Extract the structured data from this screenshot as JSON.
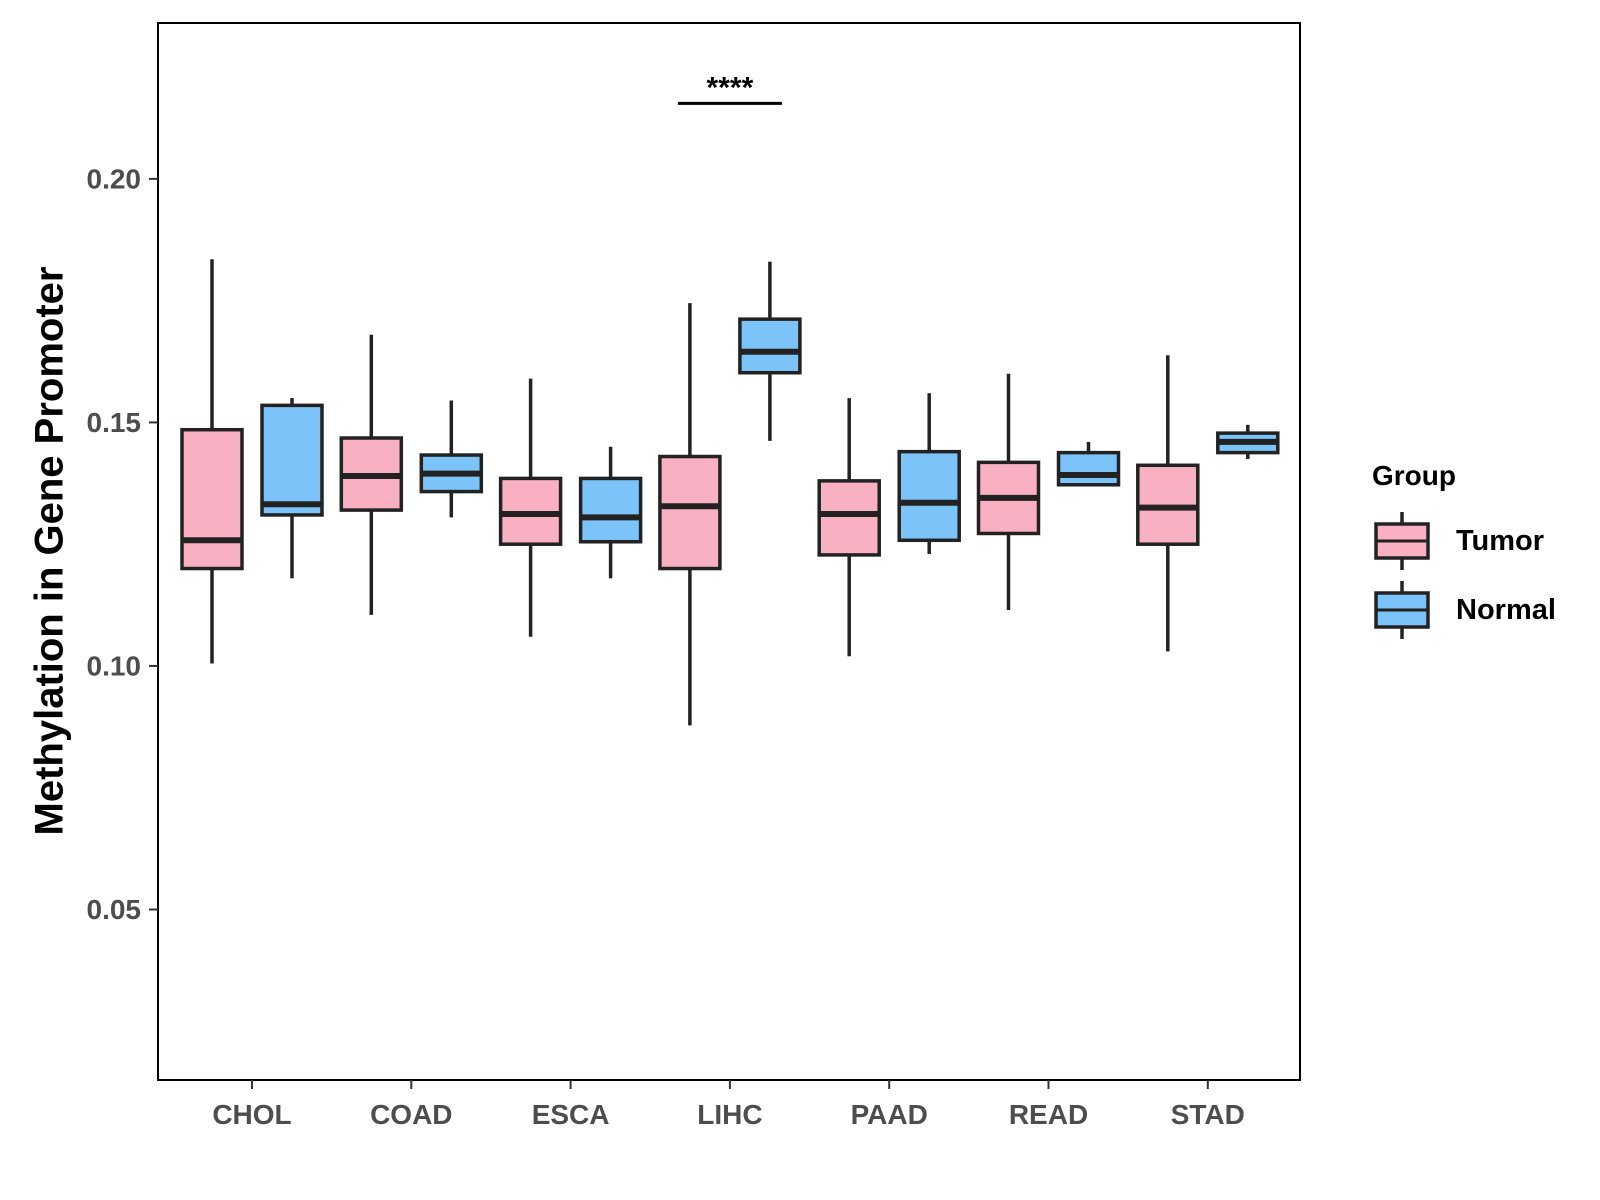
{
  "chart_data": {
    "type": "boxplot",
    "title": "",
    "xlabel": "",
    "ylabel": "Methylation in Gene Promoter",
    "ylim": [
      0.015,
      0.232
    ],
    "yticks": [
      "0.05",
      "0.10",
      "0.15",
      "0.20"
    ],
    "categories": [
      "CHOL",
      "COAD",
      "ESCA",
      "LIHC",
      "PAAD",
      "READ",
      "STAD"
    ],
    "legend": {
      "title": "Group",
      "position": "right",
      "items": [
        {
          "name": "Tumor",
          "color": "#FAB0C3"
        },
        {
          "name": "Normal",
          "color": "#7BC3F8"
        }
      ]
    },
    "series": [
      {
        "name": "Tumor",
        "color": "#FAB0C3",
        "boxes": [
          {
            "category": "CHOL",
            "min": 0.1005,
            "q1": 0.12,
            "median": 0.1258,
            "q3": 0.1485,
            "max": 0.1835
          },
          {
            "category": "COAD",
            "min": 0.1105,
            "q1": 0.132,
            "median": 0.139,
            "q3": 0.1468,
            "max": 0.168
          },
          {
            "category": "ESCA",
            "min": 0.106,
            "q1": 0.125,
            "median": 0.1312,
            "q3": 0.1385,
            "max": 0.159
          },
          {
            "category": "LIHC",
            "min": 0.0878,
            "q1": 0.12,
            "median": 0.1328,
            "q3": 0.143,
            "max": 0.1745
          },
          {
            "category": "PAAD",
            "min": 0.102,
            "q1": 0.1228,
            "median": 0.1312,
            "q3": 0.138,
            "max": 0.155
          },
          {
            "category": "READ",
            "min": 0.1115,
            "q1": 0.1272,
            "median": 0.1345,
            "q3": 0.1418,
            "max": 0.16
          },
          {
            "category": "STAD",
            "min": 0.103,
            "q1": 0.125,
            "median": 0.1325,
            "q3": 0.1412,
            "max": 0.1638
          }
        ]
      },
      {
        "name": "Normal",
        "color": "#7BC3F8",
        "boxes": [
          {
            "category": "CHOL",
            "min": 0.118,
            "q1": 0.131,
            "median": 0.1332,
            "q3": 0.1535,
            "max": 0.155
          },
          {
            "category": "COAD",
            "min": 0.1305,
            "q1": 0.1358,
            "median": 0.1395,
            "q3": 0.1433,
            "max": 0.1545
          },
          {
            "category": "ESCA",
            "min": 0.118,
            "q1": 0.1255,
            "median": 0.1305,
            "q3": 0.1385,
            "max": 0.145
          },
          {
            "category": "LIHC",
            "min": 0.1462,
            "q1": 0.1602,
            "median": 0.1645,
            "q3": 0.1712,
            "max": 0.183
          },
          {
            "category": "PAAD",
            "min": 0.123,
            "q1": 0.1258,
            "median": 0.1335,
            "q3": 0.144,
            "max": 0.156
          },
          {
            "category": "READ",
            "min": 0.137,
            "q1": 0.1372,
            "median": 0.1392,
            "q3": 0.1438,
            "max": 0.146
          },
          {
            "category": "STAD",
            "min": 0.1425,
            "q1": 0.1438,
            "median": 0.146,
            "q3": 0.1478,
            "max": 0.1495
          }
        ]
      }
    ],
    "annotations": [
      {
        "category": "LIHC",
        "text": "****",
        "y": 0.2155
      }
    ]
  }
}
